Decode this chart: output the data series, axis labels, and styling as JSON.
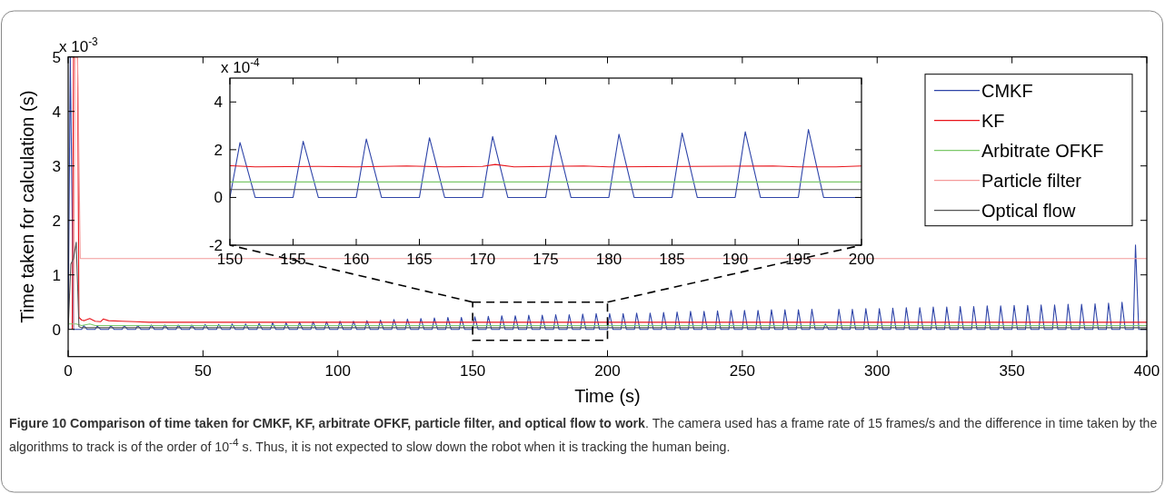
{
  "chart_data": [
    {
      "type": "line",
      "xlabel": "Time (s)",
      "ylabel": "Time taken for calculation (s)",
      "xlim": [
        0,
        400
      ],
      "ylim": [
        -0.5,
        5
      ],
      "xticks": [
        0,
        50,
        100,
        150,
        200,
        250,
        300,
        350,
        400
      ],
      "yticks": [
        0,
        1,
        2,
        3,
        4,
        5
      ],
      "grid": false,
      "legend": "top right",
      "line_style": "solid",
      "marker": "none",
      "annotations": [
        "x 10$^{-3}$",
        "Figure 10 Comparison of time taken for CMKF, KF, arbitrate OFKF, particle filter, and optical flow to work",
        ". The camera used has a frame rate of 15 frames/s and the difference in time taken by the algorithms to track is of the order of 10$^{-4}$ s. Thus, it is not expected to slow down the robot when it is tracking the human being."
      ],
      "series": [
        {
          "name": "CMKF",
          "color": "#2e44a8",
          "x": [
            0,
            0.8,
            2,
            5,
            5.8,
            7,
            10,
            10.8,
            12,
            15,
            15.8,
            17,
            20,
            20.8,
            22,
            25,
            25.8,
            27,
            30,
            30.8,
            32,
            35,
            35.8,
            37,
            40,
            40.8,
            42,
            45,
            45.8,
            47,
            50,
            50.8,
            52,
            55,
            55.8,
            57,
            60,
            60.8,
            62,
            65,
            65.8,
            67,
            70,
            70.8,
            72,
            75,
            75.8,
            77,
            80,
            80.8,
            82,
            85,
            85.8,
            87,
            90,
            90.8,
            92,
            95,
            95.8,
            97,
            100,
            100.8,
            102,
            105,
            105.8,
            107,
            110,
            110.8,
            112,
            115,
            115.8,
            117,
            120,
            120.8,
            122,
            125,
            125.8,
            127,
            130,
            130.8,
            132,
            135,
            135.8,
            137,
            140,
            140.8,
            142,
            145,
            145.8,
            147,
            150,
            150.8,
            152,
            155,
            155.8,
            157,
            160,
            160.8,
            162,
            165,
            165.8,
            167,
            170,
            170.8,
            172,
            175,
            175.8,
            177,
            180,
            180.8,
            182,
            185,
            185.8,
            187,
            190,
            190.8,
            192,
            195,
            195.8,
            197,
            200,
            200.8,
            202,
            205,
            205.8,
            207,
            210,
            210.8,
            212,
            215,
            215.8,
            217,
            220,
            220.8,
            222,
            225,
            225.8,
            227,
            230,
            230.8,
            232,
            235,
            235.8,
            237,
            240,
            240.8,
            242,
            245,
            245.8,
            247,
            250,
            250.8,
            252,
            255,
            255.8,
            257,
            260,
            260.8,
            262,
            265,
            265.8,
            267,
            270,
            270.8,
            272,
            275,
            275.8,
            277,
            280,
            280.8,
            282,
            285,
            285.8,
            287,
            290,
            290.8,
            292,
            295,
            295.8,
            297,
            300,
            300.8,
            302,
            305,
            305.8,
            307,
            310,
            310.8,
            312,
            315,
            315.8,
            317,
            320,
            320.8,
            322,
            325,
            325.8,
            327,
            330,
            330.8,
            332,
            335,
            335.8,
            337,
            340,
            340.8,
            342,
            345,
            345.8,
            347,
            350,
            350.8,
            352,
            355,
            355.8,
            357,
            360,
            360.8,
            362,
            365,
            365.8,
            367,
            370,
            370.8,
            372,
            375,
            375.8,
            377,
            380,
            380.8,
            382,
            385,
            385.8,
            387,
            390,
            390.8,
            392,
            395,
            395.8,
            397,
            400
          ],
          "values": [
            0,
            5,
            0,
            0,
            0.07,
            0,
            0,
            0.06,
            0,
            0,
            0.07,
            0,
            0,
            0.07,
            0,
            0,
            0.07,
            0,
            0,
            0.08,
            0,
            0,
            0.08,
            0,
            0,
            0.08,
            0,
            0,
            0.08,
            0,
            0,
            0.09,
            0,
            0,
            0.09,
            0,
            0,
            0.1,
            0,
            0,
            0.1,
            0,
            0,
            0.11,
            0,
            0,
            0.12,
            0,
            0,
            0.12,
            0,
            0,
            0.13,
            0,
            0,
            0.14,
            0,
            0,
            0.14,
            0,
            0,
            0.15,
            0,
            0,
            0.15,
            0,
            0,
            0.16,
            0,
            0,
            0.17,
            0,
            0,
            0.18,
            0,
            0,
            0.19,
            0,
            0,
            0.2,
            0,
            0,
            0.21,
            0,
            0,
            0.22,
            0,
            0,
            0.22,
            0,
            0,
            0.23,
            0,
            0,
            0.24,
            0,
            0,
            0.25,
            0,
            0,
            0.25,
            0,
            0,
            0.26,
            0,
            0,
            0.26,
            0,
            0,
            0.27,
            0,
            0,
            0.27,
            0,
            0,
            0.28,
            0,
            0,
            0.29,
            0,
            0,
            0.29,
            0,
            0,
            0.29,
            0,
            0,
            0.3,
            0,
            0,
            0.3,
            0,
            0,
            0.31,
            0,
            0,
            0.32,
            0,
            0,
            0.33,
            0,
            0,
            0.33,
            0,
            0,
            0.34,
            0,
            0,
            0.35,
            0,
            0,
            0.35,
            0,
            0,
            0.35,
            0,
            0,
            0.36,
            0,
            0,
            0.36,
            0,
            0,
            0.36,
            0,
            0,
            0.37,
            0,
            0,
            0.1,
            0,
            0,
            0.37,
            0,
            0,
            0.37,
            0,
            0,
            0.38,
            0,
            0,
            0.38,
            0,
            0,
            0.39,
            0,
            0,
            0.4,
            0,
            0,
            0.4,
            0,
            0,
            0.41,
            0,
            0,
            0.41,
            0,
            0,
            0.42,
            0,
            0,
            0.42,
            0,
            0,
            0.43,
            0,
            0,
            0.43,
            0,
            0,
            0.44,
            0,
            0,
            0.44,
            0,
            0,
            0.45,
            0,
            0,
            0.45,
            0,
            0,
            0.46,
            0,
            0,
            0.46,
            0,
            0,
            0.47,
            0,
            0,
            0.48,
            0,
            0,
            0.5,
            0,
            0,
            1.55,
            0,
            0
          ]
        },
        {
          "name": "KF",
          "color": "#e8131a",
          "x": [
            1.5,
            2,
            3.5,
            4,
            5,
            6,
            8,
            10,
            12,
            13,
            15,
            20,
            25,
            30,
            400
          ],
          "values": [
            0,
            5,
            5,
            0.22,
            0.17,
            0.16,
            0.2,
            0.15,
            0.14,
            0.19,
            0.16,
            0.15,
            0.14,
            0.13,
            0.13
          ]
        },
        {
          "name": "Arbitrate OFKF",
          "color": "#7cc86a",
          "x": [
            0,
            3,
            5,
            8,
            10,
            400
          ],
          "values": [
            0.1,
            0.1,
            0.07,
            0.1,
            0.07,
            0.07
          ]
        },
        {
          "name": "Particle filter",
          "color": "#f49a9a",
          "x": [
            2,
            2.5,
            3.5,
            4.5,
            400
          ],
          "values": [
            0,
            5,
            5,
            1.3,
            1.3
          ]
        },
        {
          "name": "Optical flow",
          "color": "#555555",
          "x": [
            0,
            1,
            2,
            3,
            4,
            5,
            400
          ],
          "values": [
            0,
            1.2,
            1.3,
            1.6,
            0.05,
            0.03,
            0.03
          ]
        }
      ]
    },
    {
      "type": "line",
      "xlim": [
        150,
        200
      ],
      "ylim": [
        -2,
        5
      ],
      "xticks": [
        150,
        155,
        160,
        165,
        170,
        175,
        180,
        185,
        190,
        195,
        200
      ],
      "yticks": [
        -2,
        0,
        2,
        4
      ],
      "grid": false,
      "line_style": "solid",
      "marker": "none",
      "annotations": [
        "x 10$^{-4}$"
      ],
      "series": [
        {
          "color": "#2e44a8",
          "x": [
            150,
            150.8,
            152,
            155,
            155.8,
            157,
            160,
            160.8,
            162,
            165,
            165.8,
            167,
            170,
            170.8,
            172,
            175,
            175.8,
            177,
            180,
            180.8,
            182,
            185,
            185.8,
            187,
            190,
            190.8,
            192,
            195,
            195.8,
            197,
            200
          ],
          "values": [
            0,
            2.3,
            0,
            0,
            2.35,
            0,
            0,
            2.45,
            0,
            0,
            2.5,
            0,
            0,
            2.55,
            0,
            0,
            2.6,
            0,
            0,
            2.65,
            0,
            0,
            2.7,
            0,
            0,
            2.75,
            0,
            0,
            2.85,
            0,
            0
          ]
        },
        {
          "color": "#e8131a",
          "x": [
            150,
            152,
            157,
            160,
            164,
            167,
            170,
            171,
            172.5,
            178,
            180,
            193,
            195,
            198,
            200
          ],
          "values": [
            1.33,
            1.28,
            1.3,
            1.28,
            1.32,
            1.28,
            1.3,
            1.38,
            1.28,
            1.32,
            1.28,
            1.32,
            1.28,
            1.28,
            1.32
          ]
        },
        {
          "color": "#7cc86a",
          "x": [
            150,
            200
          ],
          "values": [
            0.65,
            0.65
          ]
        },
        {
          "color": "#555555",
          "x": [
            150,
            200
          ],
          "values": [
            0.33,
            0.33
          ]
        }
      ]
    }
  ]
}
